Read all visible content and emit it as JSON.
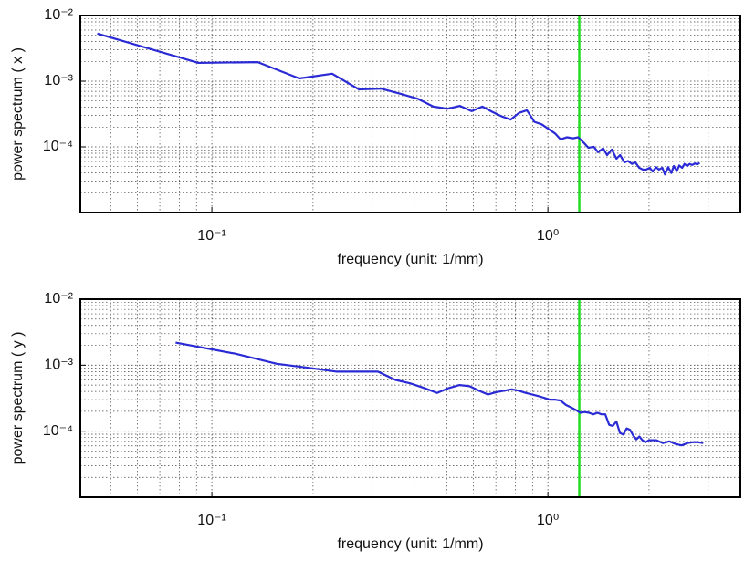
{
  "chart_data": [
    {
      "type": "line",
      "xscale": "log",
      "yscale": "log",
      "grid": true,
      "minor_grid": true,
      "ylabel": "power spectrum ( x )",
      "xlabel": "frequency (unit: 1/mm)",
      "xlim": [
        0.0406,
        3.74
      ],
      "ylim": [
        1e-05,
        0.01
      ],
      "xticks": [
        {
          "value": 0.1,
          "label": "10⁻¹"
        },
        {
          "value": 1,
          "label": "10⁰"
        }
      ],
      "yticks": [
        {
          "value": 0.0001,
          "label": "10⁻⁴"
        },
        {
          "value": 0.001,
          "label": "10⁻³"
        },
        {
          "value": 0.01,
          "label": "10⁻²"
        }
      ],
      "color": "#2b2bd6",
      "vline": {
        "x": 1.24,
        "color": "#22dd22"
      },
      "x": [
        0.0456,
        0.0912,
        0.137,
        0.182,
        0.228,
        0.274,
        0.319,
        0.365,
        0.41,
        0.456,
        0.502,
        0.547,
        0.593,
        0.638,
        0.684,
        0.73,
        0.775,
        0.821,
        0.866,
        0.912,
        0.958,
        1.0,
        1.05,
        1.09,
        1.14,
        1.19,
        1.23,
        1.28,
        1.32,
        1.37,
        1.41,
        1.46,
        1.5,
        1.55,
        1.6,
        1.64,
        1.69,
        1.73,
        1.78,
        1.82,
        1.87,
        1.92,
        1.96,
        2.01,
        2.05,
        2.1,
        2.14,
        2.19,
        2.23,
        2.28,
        2.33,
        2.37,
        2.42,
        2.46,
        2.51,
        2.55,
        2.6,
        2.64,
        2.69,
        2.74,
        2.78,
        2.83
      ],
      "values": [
        0.0053,
        0.0019,
        0.00195,
        0.0011,
        0.0013,
        0.00075,
        0.00077,
        0.00064,
        0.00054,
        0.00041,
        0.00038,
        0.00042,
        0.00035,
        0.00041,
        0.00034,
        0.00029,
        0.00026,
        0.00033,
        0.00036,
        0.00024,
        0.00022,
        0.00019,
        0.00016,
        0.00013,
        0.00014,
        0.000135,
        0.00014,
        0.000115,
        9.7e-05,
        0.0001,
        8.3e-05,
        9.5e-05,
        7.5e-05,
        9.1e-05,
        6.6e-05,
        7.5e-05,
        5.8e-05,
        6.1e-05,
        5.5e-05,
        5.8e-05,
        4.8e-05,
        4.5e-05,
        4.5e-05,
        4.8e-05,
        4.2e-05,
        4.9e-05,
        4.5e-05,
        4.8e-05,
        3.8e-05,
        4.9e-05,
        4e-05,
        5.1e-05,
        4.3e-05,
        5.2e-05,
        4.8e-05,
        5.5e-05,
        5.1e-05,
        5.5e-05,
        5.3e-05,
        5.6e-05,
        5.4e-05,
        5.7e-05
      ]
    },
    {
      "type": "line",
      "xscale": "log",
      "yscale": "log",
      "grid": true,
      "minor_grid": true,
      "ylabel": "power spectrum ( y )",
      "xlabel": "frequency (unit: 1/mm)",
      "xlim": [
        0.0406,
        3.74
      ],
      "ylim": [
        1e-05,
        0.01
      ],
      "xticks": [
        {
          "value": 0.1,
          "label": "10⁻¹"
        },
        {
          "value": 1,
          "label": "10⁰"
        }
      ],
      "yticks": [
        {
          "value": 0.0001,
          "label": "10⁻⁴"
        },
        {
          "value": 0.001,
          "label": "10⁻³"
        },
        {
          "value": 0.01,
          "label": "10⁻²"
        }
      ],
      "color": "#2b2bd6",
      "vline": {
        "x": 1.24,
        "color": "#22dd22"
      },
      "x": [
        0.078,
        0.117,
        0.156,
        0.195,
        0.234,
        0.273,
        0.312,
        0.351,
        0.39,
        0.429,
        0.468,
        0.507,
        0.546,
        0.585,
        0.624,
        0.663,
        0.702,
        0.741,
        0.78,
        0.819,
        0.858,
        0.897,
        0.936,
        0.975,
        1.014,
        1.053,
        1.092,
        1.131,
        1.17,
        1.209,
        1.248,
        1.287,
        1.326,
        1.365,
        1.404,
        1.443,
        1.482,
        1.521,
        1.56,
        1.599,
        1.638,
        1.677,
        1.716,
        1.755,
        1.794,
        1.833,
        1.872,
        1.911,
        1.95,
        2.0,
        2.1,
        2.2,
        2.3,
        2.4,
        2.5,
        2.6,
        2.7,
        2.8,
        2.9
      ],
      "values": [
        0.0022,
        0.0015,
        0.00105,
        0.00091,
        0.0008,
        0.0008,
        0.0008,
        0.0006,
        0.00053,
        0.00045,
        0.00038,
        0.00045,
        0.0005,
        0.00048,
        0.00041,
        0.00036,
        0.00039,
        0.00041,
        0.00043,
        0.00041,
        0.00038,
        0.00036,
        0.00034,
        0.00032,
        0.0003,
        0.0003,
        0.00029,
        0.00025,
        0.00023,
        0.00021,
        0.00019,
        0.000195,
        0.00019,
        0.00018,
        0.00019,
        0.00018,
        0.00018,
        0.000125,
        0.00012,
        0.00014,
        9.4e-05,
        8.9e-05,
        0.00011,
        0.000105,
        8.6e-05,
        7.5e-05,
        8.3e-05,
        7.3e-05,
        6.8e-05,
        7.3e-05,
        7.3e-05,
        6.6e-05,
        7e-05,
        6.4e-05,
        6.1e-05,
        6.6e-05,
        6.8e-05,
        6.8e-05,
        6.6e-05
      ]
    }
  ]
}
